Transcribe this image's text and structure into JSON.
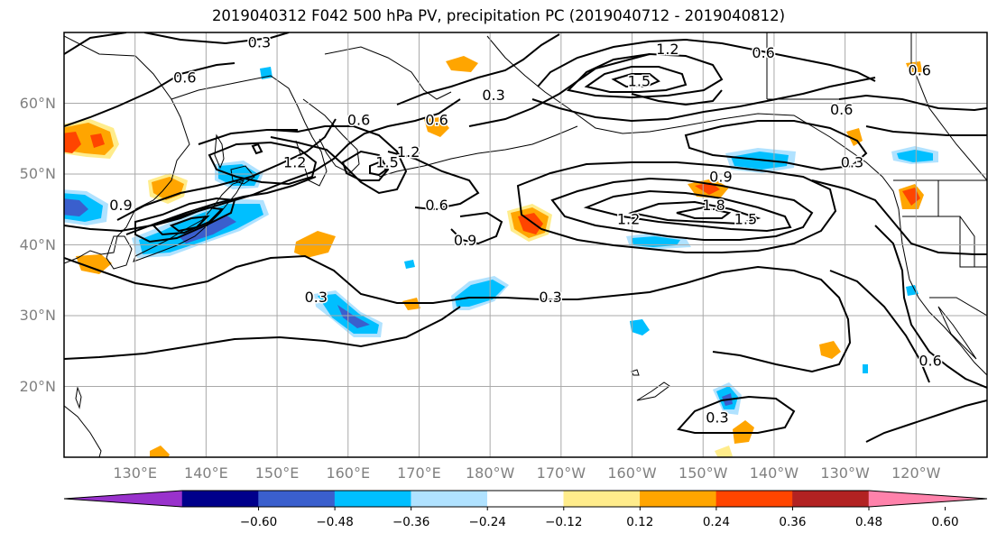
{
  "title": "2019040312 F042 500 hPa PV, precipitation PC (2019040712 - 2019040812)",
  "map": {
    "projection": "cylindrical",
    "lon_range_east": [
      120,
      250
    ],
    "lat_range": [
      10,
      70
    ],
    "graticule_lats": [
      20,
      30,
      40,
      50,
      60
    ],
    "graticule_lons_east": [
      130,
      140,
      150,
      160,
      170,
      180,
      190,
      200,
      210,
      220,
      230,
      240
    ],
    "lat_labels": [
      {
        "lat": 60,
        "text": "60°N"
      },
      {
        "lat": 50,
        "text": "50°N"
      },
      {
        "lat": 40,
        "text": "40°N"
      },
      {
        "lat": 30,
        "text": "30°N"
      },
      {
        "lat": 20,
        "text": "20°N"
      }
    ],
    "lon_labels": [
      {
        "lon": 130,
        "text": "130°E"
      },
      {
        "lon": 140,
        "text": "140°E"
      },
      {
        "lon": 150,
        "text": "150°E"
      },
      {
        "lon": 160,
        "text": "160°E"
      },
      {
        "lon": 170,
        "text": "170°E"
      },
      {
        "lon": 180,
        "text": "180°W"
      },
      {
        "lon": 190,
        "text": "170°W"
      },
      {
        "lon": 200,
        "text": "160°W"
      },
      {
        "lon": 210,
        "text": "150°W"
      },
      {
        "lon": 220,
        "text": "140°W"
      },
      {
        "lon": 230,
        "text": "130°W"
      },
      {
        "lon": 240,
        "text": "120°W"
      }
    ],
    "contour_labels": [
      {
        "text": "0.3",
        "lon": 147.5,
        "lat": 68.5
      },
      {
        "text": "0.6",
        "lon": 137.0,
        "lat": 63.5
      },
      {
        "text": "0.3",
        "lon": 180.5,
        "lat": 61.0
      },
      {
        "text": "0.6",
        "lon": 172.5,
        "lat": 57.5
      },
      {
        "text": "0.6",
        "lon": 161.5,
        "lat": 57.5
      },
      {
        "text": "1.2",
        "lon": 152.5,
        "lat": 51.5
      },
      {
        "text": "1.5",
        "lon": 165.5,
        "lat": 51.5
      },
      {
        "text": "1.2",
        "lon": 168.5,
        "lat": 53.0
      },
      {
        "text": "0.9",
        "lon": 128.0,
        "lat": 45.5
      },
      {
        "text": "1.2",
        "lon": 205.0,
        "lat": 67.5
      },
      {
        "text": "0.6",
        "lon": 218.5,
        "lat": 67.0
      },
      {
        "text": "1.5",
        "lon": 201.0,
        "lat": 63.0
      },
      {
        "text": "0.6",
        "lon": 229.5,
        "lat": 59.0
      },
      {
        "text": "0.6",
        "lon": 240.5,
        "lat": 64.5
      },
      {
        "text": "0.3",
        "lon": 231.0,
        "lat": 51.5
      },
      {
        "text": "0.9",
        "lon": 212.5,
        "lat": 49.5
      },
      {
        "text": "1.8",
        "lon": 211.5,
        "lat": 45.5
      },
      {
        "text": "1.5",
        "lon": 216.0,
        "lat": 43.5
      },
      {
        "text": "1.2",
        "lon": 199.5,
        "lat": 43.5
      },
      {
        "text": "0.6",
        "lon": 172.5,
        "lat": 45.5
      },
      {
        "text": "0.9",
        "lon": 176.5,
        "lat": 40.5
      },
      {
        "text": "0.3",
        "lon": 188.5,
        "lat": 32.5
      },
      {
        "text": "0.3",
        "lon": 155.5,
        "lat": 32.5
      },
      {
        "text": "0.3",
        "lon": 212.0,
        "lat": 15.5
      },
      {
        "text": "0.6",
        "lon": 242.0,
        "lat": 23.5
      }
    ]
  },
  "colorbar": {
    "colors": [
      "#9932cc",
      "#00008b",
      "#3a5fcd",
      "#00bfff",
      "#b0e2ff",
      "#ffffff",
      "#ffec8b",
      "#ffa500",
      "#ff4500",
      "#b22222",
      "#ff82ab"
    ],
    "ticks": [
      "−0.60",
      "−0.48",
      "−0.36",
      "−0.24",
      "−0.12",
      "0.12",
      "0.24",
      "0.36",
      "0.48",
      "0.60"
    ]
  }
}
